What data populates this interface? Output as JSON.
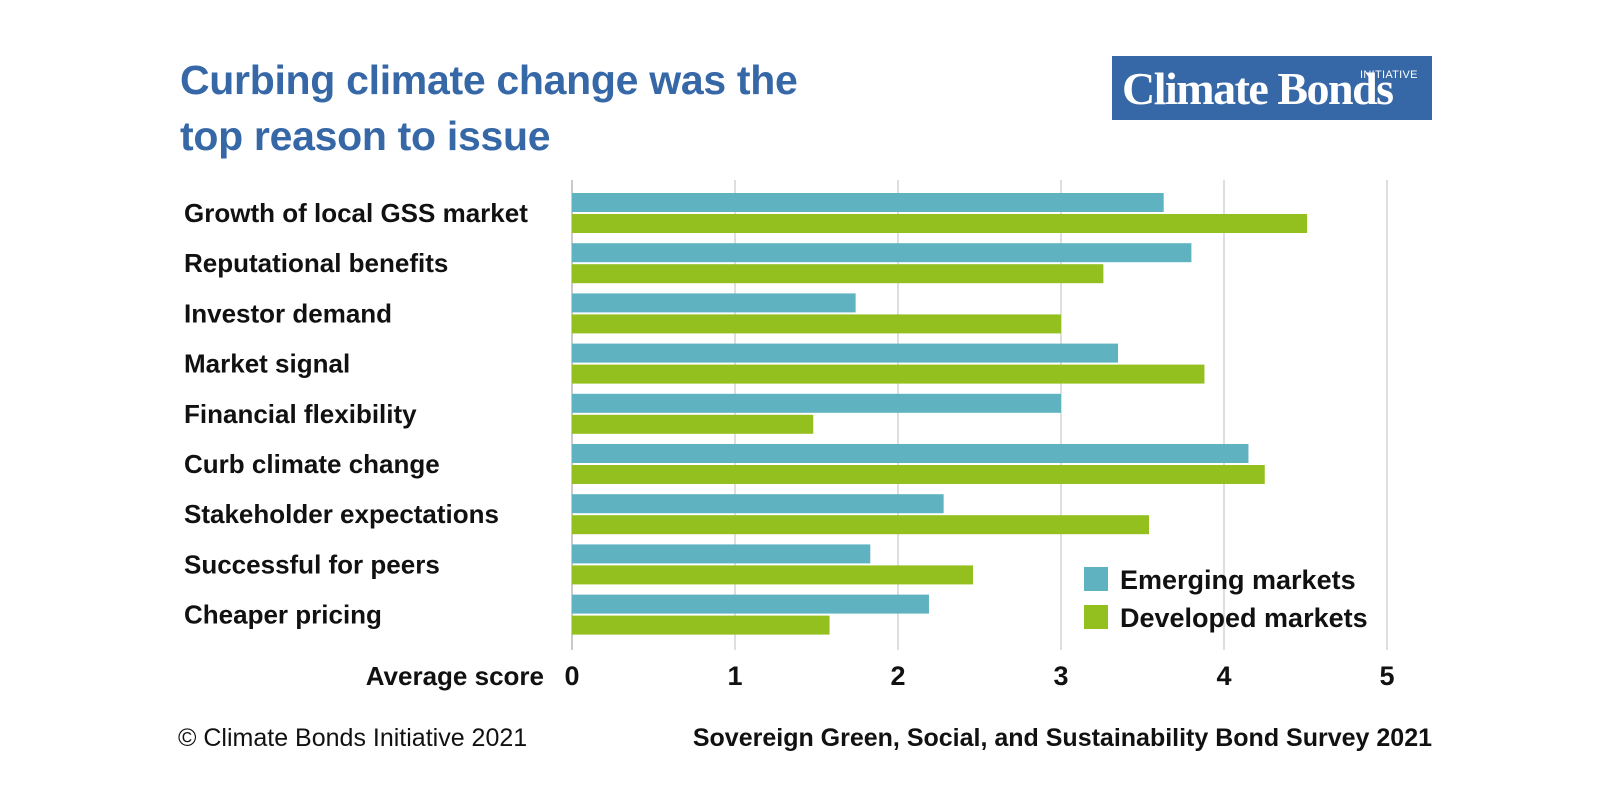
{
  "title_line1": "Curbing climate change was the",
  "title_line2": "top reason to issue",
  "logo": {
    "main": "Climate Bonds",
    "superscript": "INITIATIVE"
  },
  "footer": {
    "left": "© Climate Bonds Initiative 2021",
    "right": "Sovereign Green, Social, and Sustainability Bond Survey 2021"
  },
  "colors": {
    "emerging": "#5fb3c1",
    "developed": "#93c01f",
    "title": "#3667a6",
    "grid": "#d3d3d3"
  },
  "chart_data": {
    "type": "bar",
    "orientation": "horizontal",
    "title": "Curbing climate change was the top reason to issue",
    "xlabel": "Average score",
    "ylabel": "",
    "xlim": [
      0,
      5
    ],
    "xticks": [
      0,
      1,
      2,
      3,
      4,
      5
    ],
    "grid": true,
    "legend_position": "bottom-right",
    "categories": [
      "Growth of local GSS market",
      "Reputational benefits",
      "Investor demand",
      "Market signal",
      "Financial flexibility",
      "Curb climate change",
      "Stakeholder expectations",
      "Successful for peers",
      "Cheaper pricing"
    ],
    "series": [
      {
        "name": "Emerging markets",
        "values": [
          3.63,
          3.8,
          1.74,
          3.35,
          3.0,
          4.15,
          2.28,
          1.83,
          2.19
        ]
      },
      {
        "name": "Developed markets",
        "values": [
          4.51,
          3.26,
          3.0,
          3.88,
          1.48,
          4.25,
          3.54,
          2.46,
          1.58
        ]
      }
    ]
  }
}
